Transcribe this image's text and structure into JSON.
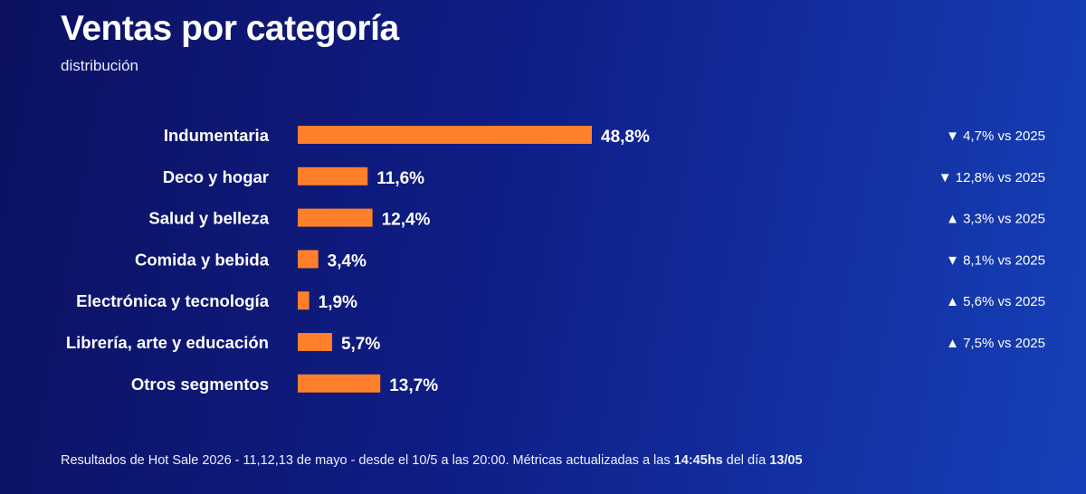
{
  "header": {
    "title": "Ventas por categoría",
    "subtitle": "distribución"
  },
  "colors": {
    "bar": "#ff7f2a",
    "text": "#ffffff"
  },
  "chart_data": {
    "type": "bar",
    "orientation": "horizontal",
    "title": "Ventas por categoría",
    "subtitle": "distribución",
    "unit": "%",
    "categories": [
      "Indumentaria",
      "Deco y hogar",
      "Salud y belleza",
      "Comida y bebida",
      "Electrónica y tecnología",
      "Librería, arte y educación",
      "Otros segmentos"
    ],
    "values": [
      48.8,
      11.6,
      12.4,
      3.4,
      1.9,
      5.7,
      13.7
    ],
    "value_labels": [
      "48,8%",
      "11,6%",
      "12,4%",
      "3,4%",
      "1,9%",
      "5,7%",
      "13,7%"
    ],
    "comparisons": [
      "▼ 4,7% vs 2025",
      "▼ 12,8% vs 2025",
      "▲ 3,3% vs 2025",
      "▼ 8,1% vs 2025",
      "▲ 5,6% vs 2025",
      "▲ 7,5% vs 2025",
      ""
    ],
    "xlim": [
      0,
      50
    ],
    "grid": false,
    "legend": "none"
  },
  "footer": {
    "text_prefix": "Resultados de Hot Sale 2026 - 11,12,13 de mayo - desde el 10/5 a las 20:00. Métricas actualizadas a las ",
    "time": "14:45hs",
    "text_middle": " del día ",
    "date": "13/05"
  }
}
